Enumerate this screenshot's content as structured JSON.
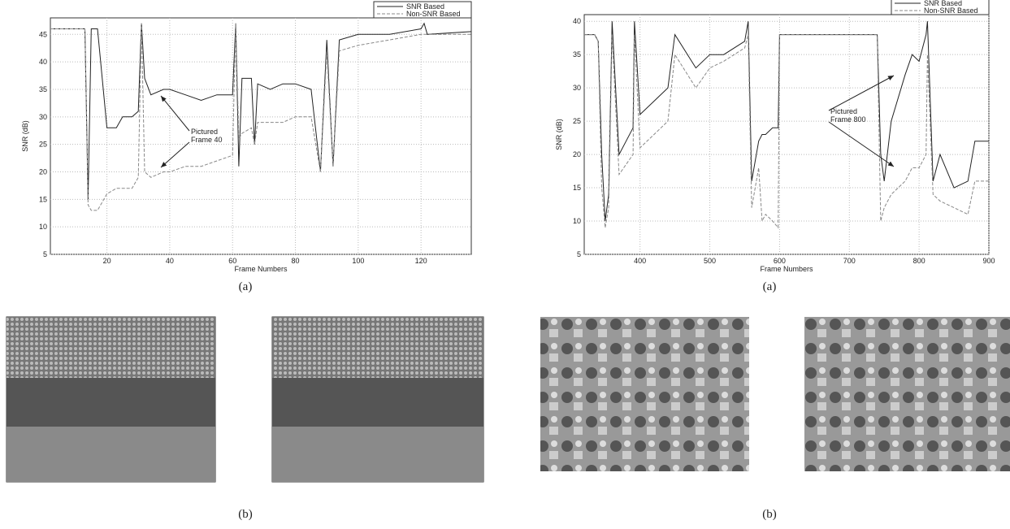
{
  "chart_data": [
    {
      "type": "line",
      "xlabel": "Frame Numbers",
      "ylabel": "SNR (dB)",
      "x": [
        2,
        12,
        13,
        14,
        15,
        17,
        20,
        23,
        25,
        28,
        30,
        31,
        32,
        34,
        38,
        40,
        45,
        50,
        55,
        60,
        61,
        62,
        63,
        66,
        67,
        68,
        72,
        76,
        80,
        85,
        88,
        90,
        92,
        94,
        100,
        110,
        120,
        121,
        122,
        136
      ],
      "series": [
        {
          "name": "SNR Based",
          "color": "#222222",
          "dash": false,
          "values": [
            46,
            46,
            46,
            15,
            46,
            46,
            28,
            28,
            30,
            30,
            31,
            47,
            37,
            34,
            35,
            35,
            34,
            33,
            34,
            34,
            47,
            21,
            37,
            37,
            25,
            36,
            35,
            36,
            36,
            35,
            20,
            44,
            21,
            44,
            45,
            45,
            46,
            47,
            45,
            45.5
          ]
        },
        {
          "name": "Non-SNR Based",
          "color": "#888888",
          "dash": true,
          "values": [
            46,
            46,
            46,
            14,
            13,
            13,
            16,
            17,
            17,
            17,
            19,
            47,
            20,
            19,
            20,
            20,
            21,
            21,
            22,
            23,
            47,
            26,
            27,
            28,
            25,
            29,
            29,
            29,
            30,
            30,
            20,
            42,
            21,
            42,
            43,
            44,
            45,
            45,
            45,
            45
          ]
        }
      ],
      "xlim": [
        2,
        136
      ],
      "xticks": [
        20,
        40,
        60,
        80,
        100,
        120
      ],
      "ylim": [
        5,
        48
      ],
      "yticks": [
        5,
        10,
        15,
        20,
        25,
        30,
        35,
        40,
        45
      ],
      "grid": true,
      "legend": "upper right",
      "annotation": [
        "Pictured",
        "Frame 40"
      ]
    },
    {
      "type": "line",
      "xlabel": "Frame Numbers",
      "ylabel": "SNR (dB)",
      "x": [
        320,
        335,
        340,
        345,
        350,
        355,
        360,
        370,
        390,
        392,
        400,
        420,
        440,
        450,
        480,
        500,
        520,
        550,
        555,
        560,
        570,
        575,
        580,
        590,
        598,
        600,
        605,
        650,
        700,
        740,
        745,
        750,
        760,
        780,
        790,
        800,
        810,
        812,
        820,
        830,
        850,
        870,
        880,
        900
      ],
      "series": [
        {
          "name": "SNR Based",
          "color": "#222222",
          "dash": false,
          "values": [
            38,
            38,
            37,
            20,
            10,
            14,
            40,
            20,
            24,
            40,
            26,
            28,
            30,
            38,
            33,
            35,
            35,
            37,
            40,
            16,
            22,
            23,
            23,
            24,
            24,
            38,
            38,
            38,
            38,
            38,
            20,
            16,
            25,
            32,
            35,
            34,
            38,
            40,
            16,
            20,
            15,
            16,
            22,
            22
          ]
        },
        {
          "name": "Non-SNR Based",
          "color": "#888888",
          "dash": true,
          "values": [
            38,
            38,
            37,
            15,
            9,
            12,
            38,
            17,
            20,
            38,
            21,
            23,
            25,
            35,
            30,
            33,
            34,
            36,
            38,
            12,
            18,
            10,
            11,
            10,
            9,
            38,
            38,
            38,
            38,
            38,
            10,
            12,
            14,
            16,
            18,
            18,
            20,
            35,
            14,
            13,
            12,
            11,
            16,
            16
          ]
        }
      ],
      "xlim": [
        320,
        900
      ],
      "xticks": [
        400,
        500,
        600,
        700,
        800,
        900
      ],
      "ylim": [
        5,
        41
      ],
      "yticks": [
        5,
        10,
        15,
        20,
        25,
        30,
        35,
        40
      ],
      "grid": true,
      "legend": "upper right",
      "annotation": [
        "Pictured",
        "Frame 800"
      ]
    }
  ],
  "captions": [
    "(a)",
    "(a)",
    "(b)",
    "(b)"
  ]
}
